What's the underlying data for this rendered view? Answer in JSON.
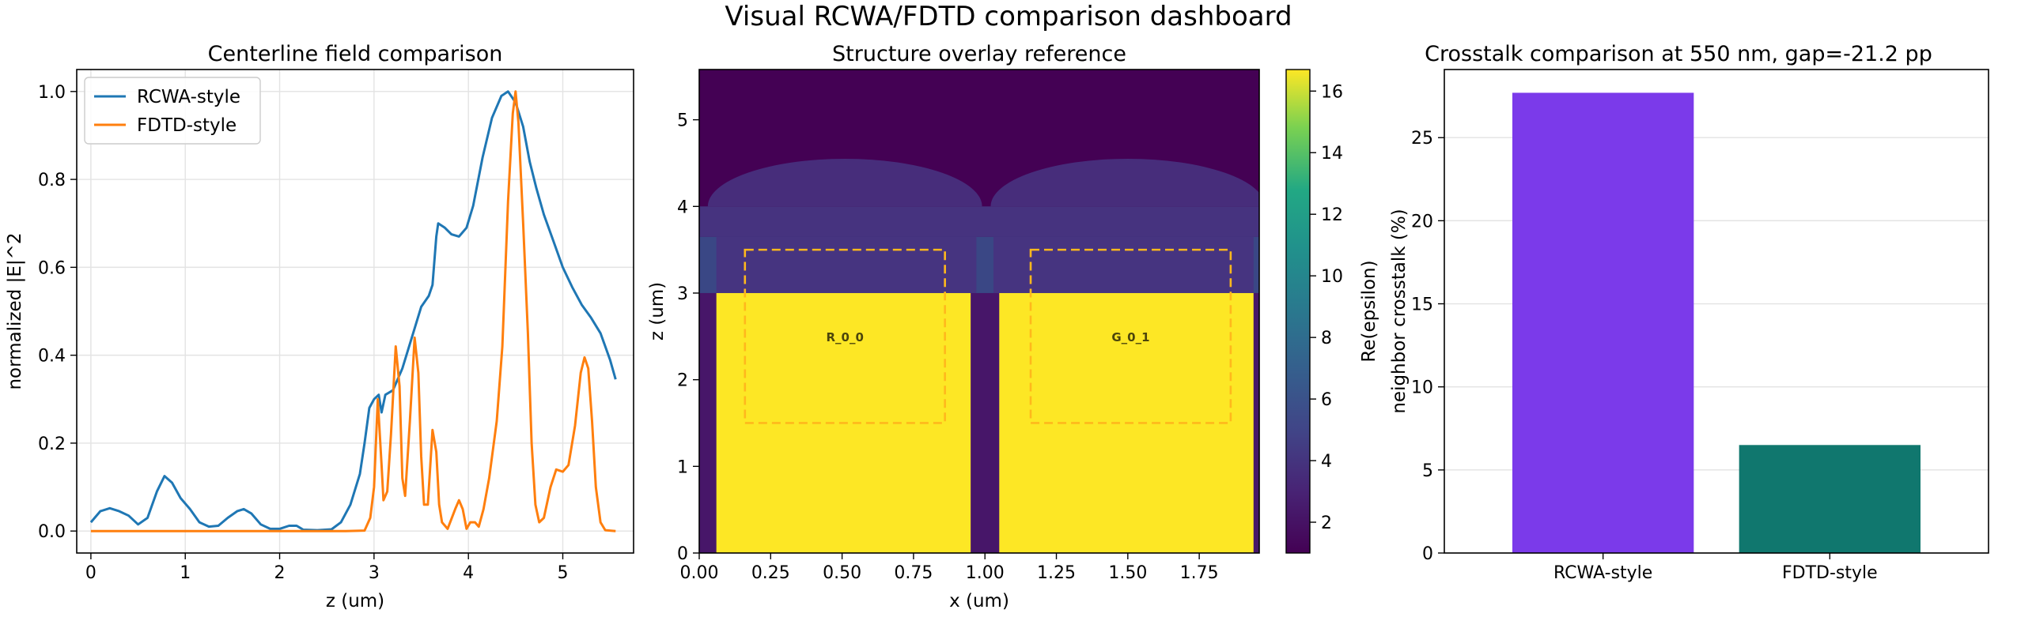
{
  "suptitle": "Visual RCWA/FDTD comparison dashboard",
  "chart_data": [
    {
      "type": "line",
      "title": "Centerline field comparison",
      "xlabel": "z (um)",
      "ylabel": "normalized |E|^2",
      "xlim": [
        -0.15,
        5.75
      ],
      "ylim": [
        -0.05,
        1.05
      ],
      "xticks": [
        0,
        1,
        2,
        3,
        4,
        5
      ],
      "yticks": [
        0.0,
        0.2,
        0.4,
        0.6,
        0.8,
        1.0
      ],
      "ytick_labels": [
        "0.0",
        "0.2",
        "0.4",
        "0.6",
        "0.8",
        "1.0"
      ],
      "grid": true,
      "legend": "upper-left",
      "series": [
        {
          "name": "RCWA-style",
          "color": "#1f77b4",
          "points": [
            [
              0,
              0.02
            ],
            [
              0.1,
              0.045
            ],
            [
              0.2,
              0.052
            ],
            [
              0.3,
              0.045
            ],
            [
              0.4,
              0.035
            ],
            [
              0.5,
              0.015
            ],
            [
              0.6,
              0.03
            ],
            [
              0.7,
              0.09
            ],
            [
              0.78,
              0.125
            ],
            [
              0.86,
              0.11
            ],
            [
              0.95,
              0.075
            ],
            [
              1.05,
              0.05
            ],
            [
              1.15,
              0.02
            ],
            [
              1.25,
              0.01
            ],
            [
              1.35,
              0.012
            ],
            [
              1.45,
              0.03
            ],
            [
              1.55,
              0.045
            ],
            [
              1.62,
              0.05
            ],
            [
              1.7,
              0.04
            ],
            [
              1.8,
              0.015
            ],
            [
              1.9,
              0.005
            ],
            [
              2.0,
              0.005
            ],
            [
              2.1,
              0.012
            ],
            [
              2.18,
              0.012
            ],
            [
              2.25,
              0.003
            ],
            [
              2.4,
              0.002
            ],
            [
              2.55,
              0.004
            ],
            [
              2.65,
              0.02
            ],
            [
              2.75,
              0.06
            ],
            [
              2.85,
              0.13
            ],
            [
              2.9,
              0.2
            ],
            [
              2.95,
              0.28
            ],
            [
              3.0,
              0.3
            ],
            [
              3.05,
              0.31
            ],
            [
              3.08,
              0.27
            ],
            [
              3.12,
              0.31
            ],
            [
              3.2,
              0.32
            ],
            [
              3.3,
              0.37
            ],
            [
              3.4,
              0.44
            ],
            [
              3.5,
              0.51
            ],
            [
              3.58,
              0.535
            ],
            [
              3.62,
              0.56
            ],
            [
              3.66,
              0.67
            ],
            [
              3.68,
              0.7
            ],
            [
              3.75,
              0.69
            ],
            [
              3.82,
              0.675
            ],
            [
              3.9,
              0.67
            ],
            [
              3.98,
              0.69
            ],
            [
              4.05,
              0.74
            ],
            [
              4.15,
              0.85
            ],
            [
              4.25,
              0.94
            ],
            [
              4.35,
              0.99
            ],
            [
              4.42,
              1.0
            ],
            [
              4.5,
              0.975
            ],
            [
              4.58,
              0.92
            ],
            [
              4.65,
              0.84
            ],
            [
              4.72,
              0.78
            ],
            [
              4.8,
              0.72
            ],
            [
              4.9,
              0.66
            ],
            [
              5.0,
              0.6
            ],
            [
              5.1,
              0.555
            ],
            [
              5.2,
              0.515
            ],
            [
              5.3,
              0.485
            ],
            [
              5.4,
              0.45
            ],
            [
              5.5,
              0.39
            ],
            [
              5.56,
              0.345
            ]
          ]
        },
        {
          "name": "FDTD-style",
          "color": "#ff7f0e",
          "points": [
            [
              0,
              0.0
            ],
            [
              1.0,
              0.0
            ],
            [
              2.0,
              0.0
            ],
            [
              2.7,
              0.0
            ],
            [
              2.9,
              0.001
            ],
            [
              2.96,
              0.03
            ],
            [
              3.0,
              0.1
            ],
            [
              3.04,
              0.3
            ],
            [
              3.08,
              0.15
            ],
            [
              3.1,
              0.07
            ],
            [
              3.14,
              0.09
            ],
            [
              3.18,
              0.22
            ],
            [
              3.23,
              0.42
            ],
            [
              3.27,
              0.33
            ],
            [
              3.3,
              0.12
            ],
            [
              3.33,
              0.08
            ],
            [
              3.38,
              0.25
            ],
            [
              3.43,
              0.44
            ],
            [
              3.47,
              0.36
            ],
            [
              3.5,
              0.17
            ],
            [
              3.53,
              0.06
            ],
            [
              3.57,
              0.06
            ],
            [
              3.62,
              0.23
            ],
            [
              3.66,
              0.18
            ],
            [
              3.69,
              0.06
            ],
            [
              3.72,
              0.02
            ],
            [
              3.78,
              0.005
            ],
            [
              3.86,
              0.05
            ],
            [
              3.9,
              0.07
            ],
            [
              3.94,
              0.05
            ],
            [
              3.98,
              0.005
            ],
            [
              4.02,
              0.02
            ],
            [
              4.07,
              0.02
            ],
            [
              4.11,
              0.01
            ],
            [
              4.16,
              0.05
            ],
            [
              4.22,
              0.12
            ],
            [
              4.3,
              0.25
            ],
            [
              4.36,
              0.42
            ],
            [
              4.42,
              0.75
            ],
            [
              4.47,
              0.95
            ],
            [
              4.5,
              1.0
            ],
            [
              4.53,
              0.93
            ],
            [
              4.58,
              0.7
            ],
            [
              4.63,
              0.45
            ],
            [
              4.67,
              0.2
            ],
            [
              4.71,
              0.06
            ],
            [
              4.75,
              0.02
            ],
            [
              4.8,
              0.03
            ],
            [
              4.87,
              0.1
            ],
            [
              4.93,
              0.14
            ],
            [
              5.0,
              0.135
            ],
            [
              5.06,
              0.15
            ],
            [
              5.13,
              0.24
            ],
            [
              5.19,
              0.36
            ],
            [
              5.23,
              0.395
            ],
            [
              5.27,
              0.37
            ],
            [
              5.31,
              0.25
            ],
            [
              5.35,
              0.1
            ],
            [
              5.4,
              0.02
            ],
            [
              5.45,
              0.002
            ],
            [
              5.56,
              0.0
            ]
          ]
        }
      ]
    },
    {
      "type": "heatmap",
      "title": "Structure overlay reference",
      "xlabel": "x (um)",
      "ylabel": "z (um)",
      "xlim": [
        0.0,
        1.96
      ],
      "ylim": [
        0.0,
        5.58
      ],
      "xticks": [
        0.0,
        0.25,
        0.5,
        0.75,
        1.0,
        1.25,
        1.5,
        1.75
      ],
      "xtick_labels": [
        "0.00",
        "0.25",
        "0.50",
        "0.75",
        "1.00",
        "1.25",
        "1.50",
        "1.75"
      ],
      "yticks": [
        0,
        1,
        2,
        3,
        4,
        5
      ],
      "colorbar": {
        "label": "Re(epsilon)",
        "range": [
          1.0,
          16.7
        ],
        "ticks": [
          2,
          4,
          6,
          8,
          10,
          12,
          14,
          16
        ],
        "colormap": "viridis"
      },
      "background": {
        "value": 1.0,
        "color": "#440154"
      },
      "regions": [
        {
          "kind": "rect",
          "x": [
            0.0,
            1.96
          ],
          "z": [
            0.0,
            3.0
          ],
          "value": 2.1,
          "color": "#471669"
        },
        {
          "kind": "rect",
          "x": [
            0.0,
            1.96
          ],
          "z": [
            3.0,
            3.65
          ],
          "value": 3.2,
          "color": "#3a4785"
        },
        {
          "kind": "rect",
          "x": [
            0.0,
            1.96
          ],
          "z": [
            3.65,
            4.0
          ],
          "value": 2.5,
          "color": "#46337f"
        },
        {
          "kind": "rect",
          "x": [
            0.06,
            0.97
          ],
          "z": [
            3.0,
            3.65
          ],
          "value": 2.6,
          "color": "#463480"
        },
        {
          "kind": "rect",
          "x": [
            1.03,
            1.94
          ],
          "z": [
            3.0,
            3.65
          ],
          "value": 2.6,
          "color": "#463480"
        },
        {
          "kind": "lens",
          "x": [
            0.03,
            0.99
          ],
          "z": [
            4.0,
            4.55
          ],
          "value": 2.4,
          "color": "#472d7b"
        },
        {
          "kind": "lens",
          "x": [
            1.02,
            1.98
          ],
          "z": [
            4.0,
            4.55
          ],
          "value": 2.4,
          "color": "#472d7b"
        },
        {
          "kind": "rect",
          "x": [
            0.06,
            0.95
          ],
          "z": [
            0.0,
            3.0
          ],
          "value": 16.7,
          "color": "#fde725"
        },
        {
          "kind": "rect",
          "x": [
            1.05,
            1.94
          ],
          "z": [
            0.0,
            3.0
          ],
          "value": 16.7,
          "color": "#fde725"
        }
      ],
      "overlays": [
        {
          "label": "R_0_0",
          "x": [
            0.16,
            0.86
          ],
          "z": [
            1.5,
            3.5
          ],
          "color": "#ffb81c"
        },
        {
          "label": "G_0_1",
          "x": [
            1.16,
            1.86
          ],
          "z": [
            1.5,
            3.5
          ],
          "color": "#ffb81c"
        }
      ]
    },
    {
      "type": "bar",
      "title": "Crosstalk comparison at 550 nm, gap=-21.2 pp",
      "categories": [
        "RCWA-style",
        "FDTD-style"
      ],
      "values": [
        27.7,
        6.5
      ],
      "colors": [
        "#7b3aea",
        "#10776e"
      ],
      "xlabel": "",
      "ylabel": "neighbor crosstalk (%)",
      "ylim": [
        0,
        29.1
      ],
      "yticks": [
        0,
        5,
        10,
        15,
        20,
        25
      ],
      "grid": "y"
    }
  ]
}
